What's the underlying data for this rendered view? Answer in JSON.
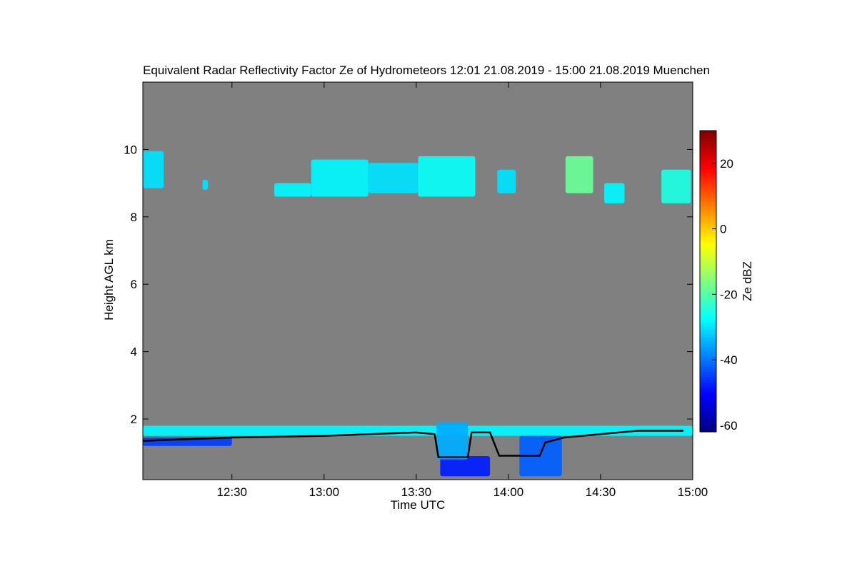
{
  "chart_data": {
    "type": "time-height",
    "title": "Equivalent Radar Reflectivity Factor Ze of Hydrometeors   12:01 21.08.2019 - 15:00 21.08.2019 Muenchen",
    "x_label": "Time UTC",
    "y_label": "Height AGL km",
    "colorbar_label": "Ze dBZ",
    "xlim": [
      12.0167,
      15.0
    ],
    "xticks": [
      {
        "value": 12.5,
        "label": "12:30"
      },
      {
        "value": 13.0,
        "label": "13:00"
      },
      {
        "value": 13.5,
        "label": "13:30"
      },
      {
        "value": 14.0,
        "label": "14:00"
      },
      {
        "value": 14.5,
        "label": "14:30"
      },
      {
        "value": 15.0,
        "label": "15:00"
      }
    ],
    "ylim": [
      0.2,
      12
    ],
    "yticks": [
      2,
      4,
      6,
      8,
      10
    ],
    "clim": [
      -62,
      30
    ],
    "cticks": [
      -60,
      -40,
      -20,
      0,
      20
    ],
    "colormap": "jet",
    "background": "#808080",
    "echoes": [
      {
        "t0": 12.0167,
        "t1": 15.0,
        "h0": 1.5,
        "h1": 1.8,
        "ze": -28
      },
      {
        "t0": 12.0167,
        "t1": 12.5,
        "h0": 1.2,
        "h1": 1.45,
        "ze": -45
      },
      {
        "t0": 13.63,
        "t1": 13.9,
        "h0": 0.3,
        "h1": 0.9,
        "ze": -48
      },
      {
        "t0": 13.61,
        "t1": 13.78,
        "h0": 0.8,
        "h1": 1.9,
        "ze": -35
      },
      {
        "t0": 14.06,
        "t1": 14.29,
        "h0": 0.3,
        "h1": 1.5,
        "ze": -42
      },
      {
        "t0": 12.0167,
        "t1": 12.13,
        "h0": 8.85,
        "h1": 9.95,
        "ze": -30
      },
      {
        "t0": 12.34,
        "t1": 12.37,
        "h0": 8.8,
        "h1": 9.1,
        "ze": -30
      },
      {
        "t0": 12.73,
        "t1": 12.93,
        "h0": 8.6,
        "h1": 9.0,
        "ze": -28
      },
      {
        "t0": 12.93,
        "t1": 13.24,
        "h0": 8.6,
        "h1": 9.7,
        "ze": -28
      },
      {
        "t0": 13.24,
        "t1": 13.51,
        "h0": 8.7,
        "h1": 9.6,
        "ze": -30
      },
      {
        "t0": 13.51,
        "t1": 13.82,
        "h0": 8.6,
        "h1": 9.8,
        "ze": -27
      },
      {
        "t0": 13.94,
        "t1": 14.04,
        "h0": 8.7,
        "h1": 9.4,
        "ze": -30
      },
      {
        "t0": 14.31,
        "t1": 14.46,
        "h0": 8.7,
        "h1": 9.8,
        "ze": -18
      },
      {
        "t0": 14.52,
        "t1": 14.63,
        "h0": 8.4,
        "h1": 9.0,
        "ze": -28
      },
      {
        "t0": 14.83,
        "t1": 14.99,
        "h0": 8.4,
        "h1": 9.4,
        "ze": -25
      }
    ],
    "cloud_base": {
      "color": "#000000",
      "x": [
        12.0167,
        12.5,
        13.0,
        13.5,
        13.6,
        13.62,
        13.78,
        13.8,
        13.9,
        13.95,
        14.17,
        14.2,
        14.3,
        14.5,
        14.7,
        14.95
      ],
      "values": [
        1.35,
        1.45,
        1.5,
        1.6,
        1.55,
        0.87,
        0.87,
        1.6,
        1.6,
        0.91,
        0.91,
        1.3,
        1.45,
        1.55,
        1.65,
        1.65
      ]
    }
  }
}
